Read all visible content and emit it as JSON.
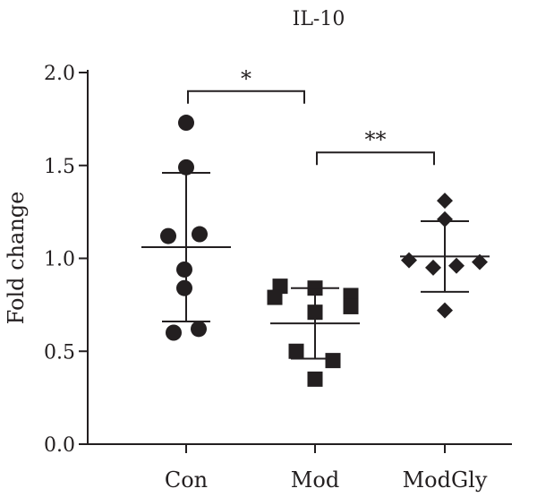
{
  "chart_data": {
    "type": "scatter",
    "title": "IL-10",
    "xlabel": "",
    "ylabel": "Fold change",
    "ylim": [
      0,
      2.0
    ],
    "yticks": [
      "0.0",
      "0.5",
      "1.0",
      "1.5",
      "2.0"
    ],
    "categories": [
      "Con",
      "Mod",
      "ModGly"
    ],
    "grid": false,
    "colors": {
      "marker": "#231f20"
    },
    "groups": [
      {
        "category": "Con",
        "marker": "circle",
        "points": [
          1.73,
          1.49,
          1.12,
          1.13,
          0.94,
          0.84,
          0.6,
          0.62
        ],
        "mean": 1.06,
        "sd_low": 0.66,
        "sd_high": 1.46
      },
      {
        "category": "Mod",
        "marker": "square",
        "points": [
          0.85,
          0.84,
          0.79,
          0.8,
          0.74,
          0.71,
          0.5,
          0.45,
          0.35
        ],
        "mean": 0.65,
        "sd_low": 0.46,
        "sd_high": 0.84
      },
      {
        "category": "ModGly",
        "marker": "diamond",
        "points": [
          1.31,
          1.21,
          0.99,
          0.95,
          0.96,
          0.98,
          0.72
        ],
        "mean": 1.01,
        "sd_low": 0.82,
        "sd_high": 1.2
      }
    ],
    "annotations": [
      {
        "from": "Con",
        "to": "Mod",
        "y": 1.9,
        "label": "*"
      },
      {
        "from": "Mod",
        "to": "ModGly",
        "y": 1.57,
        "label": "**"
      }
    ]
  }
}
